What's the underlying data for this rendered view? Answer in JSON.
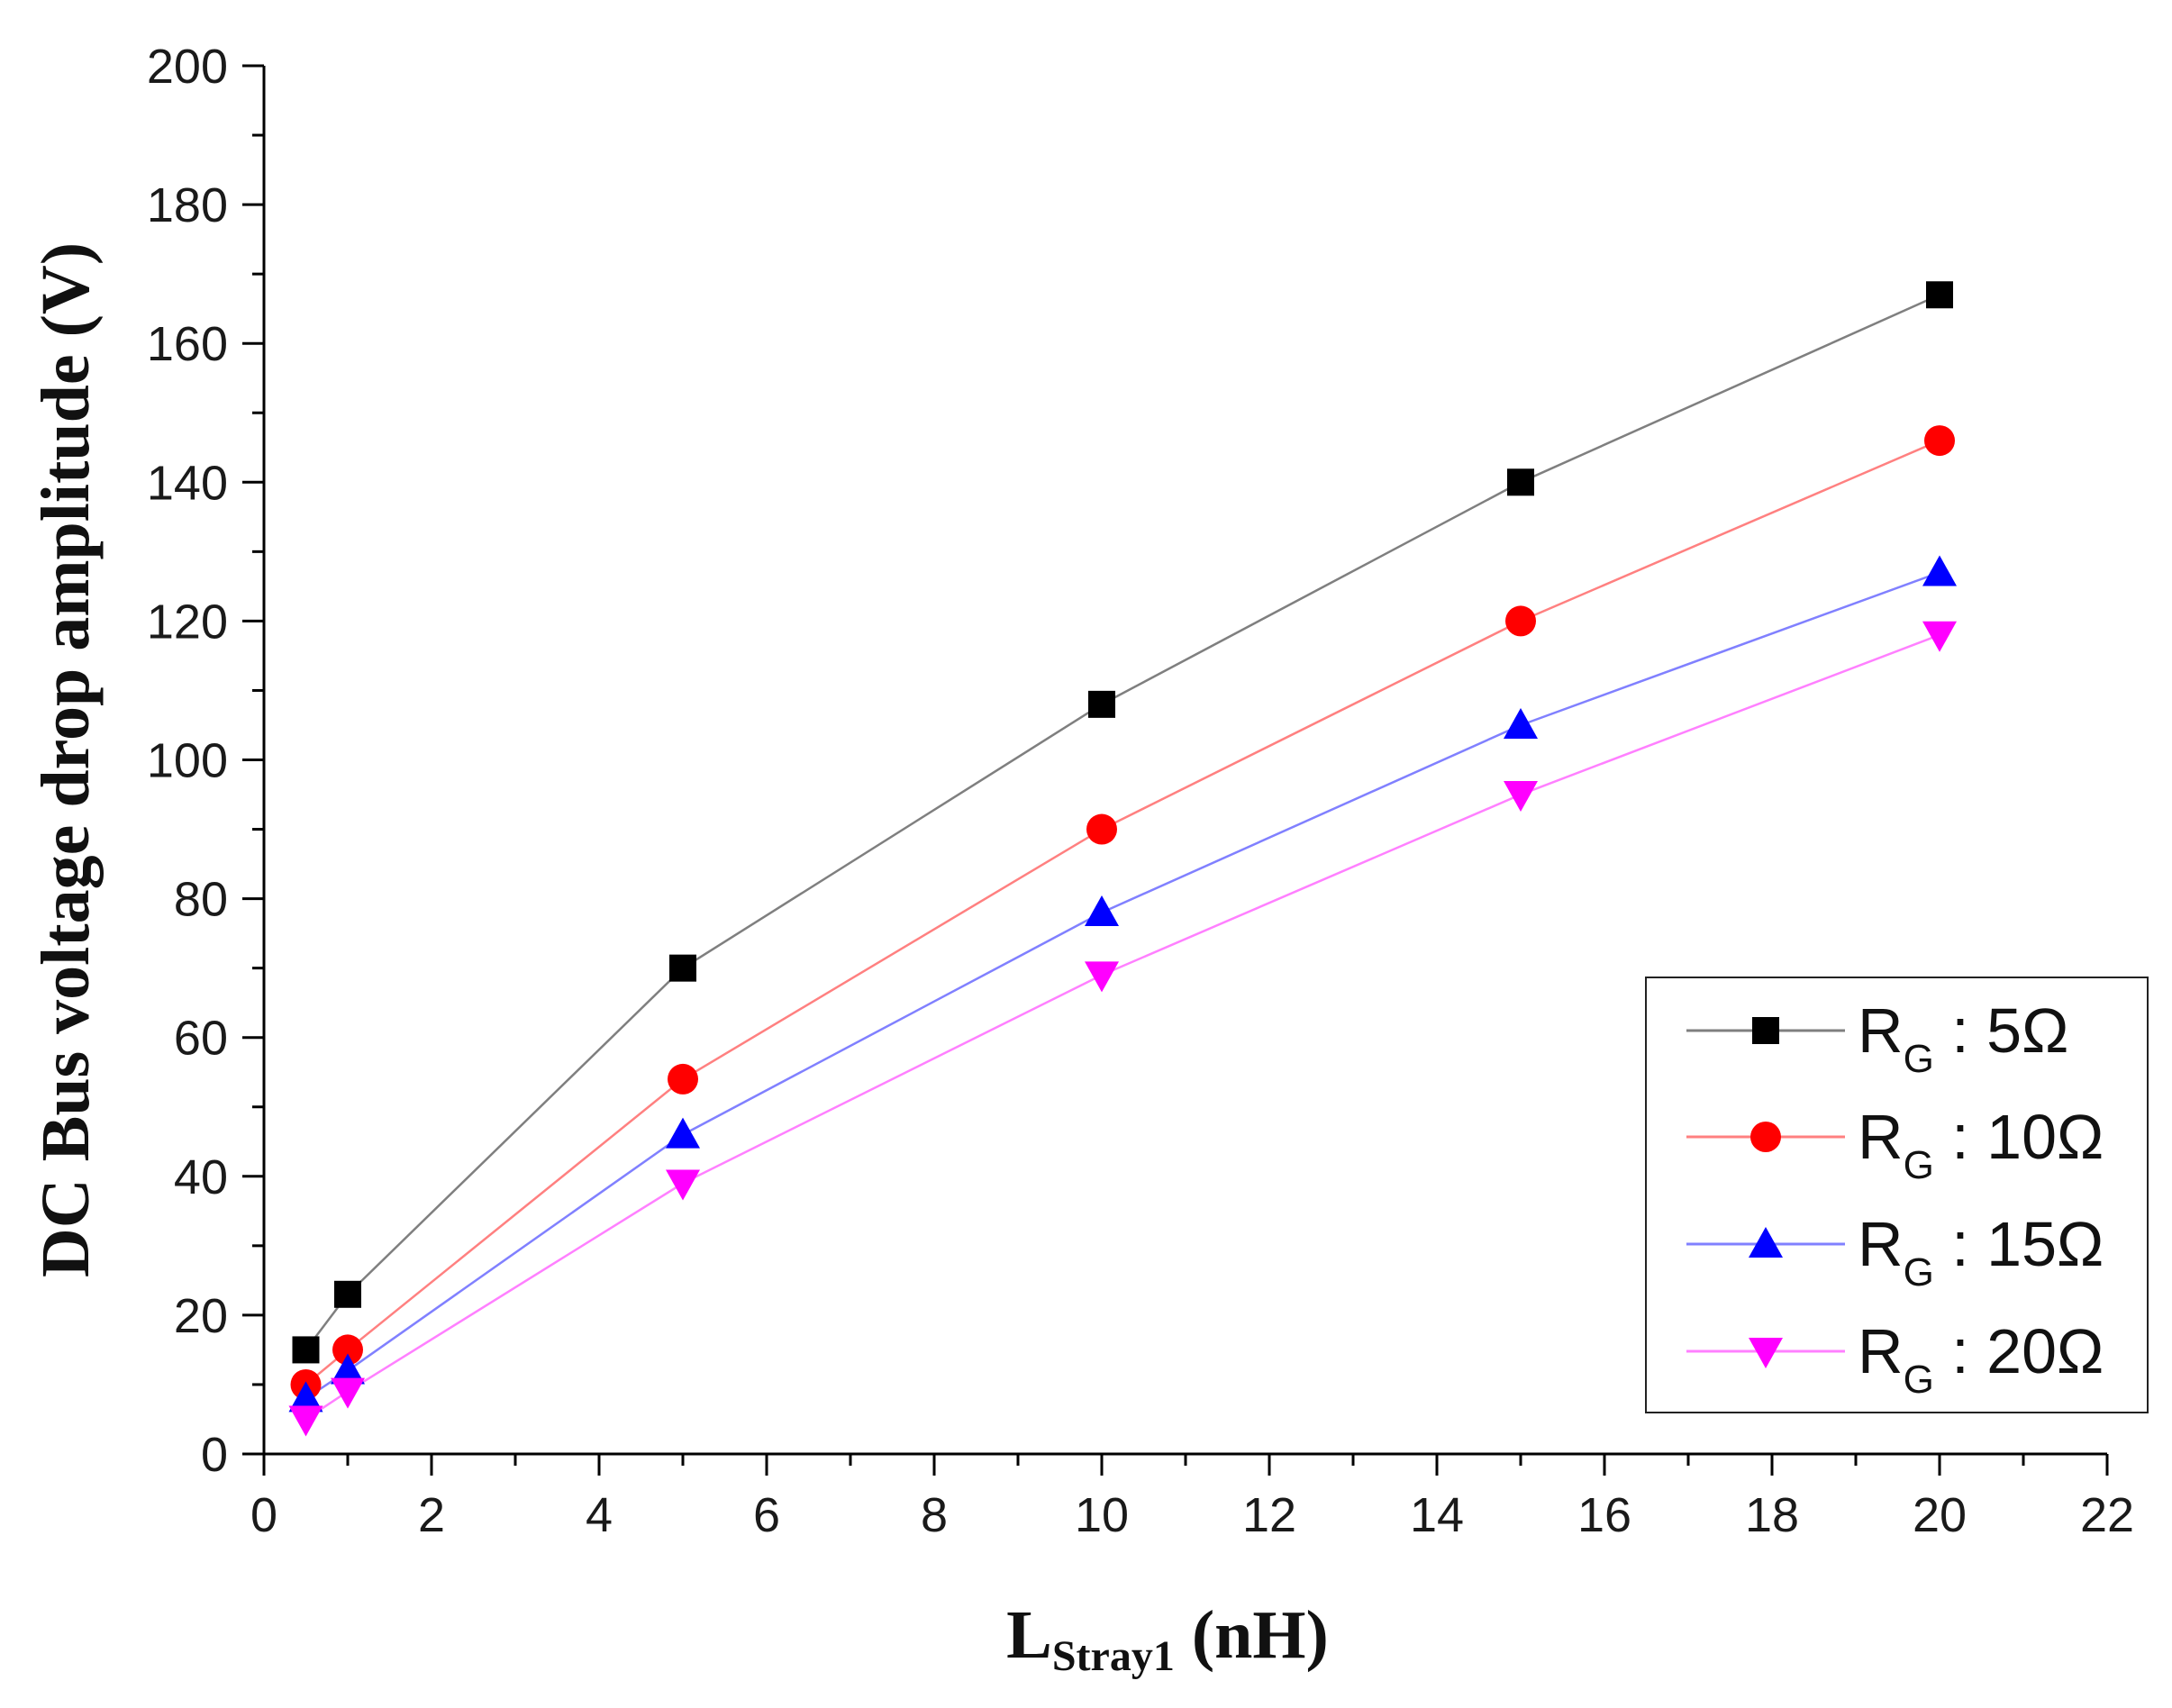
{
  "chart_data": {
    "type": "line",
    "title": "",
    "xlabel": {
      "main": "L",
      "sub": "Stray1",
      "unit": " (nH)"
    },
    "ylabel": "DC Bus voltage drop amplitude (V)",
    "xlim": [
      0,
      22
    ],
    "ylim": [
      0,
      200
    ],
    "x_major_ticks": [
      0,
      2,
      4,
      6,
      8,
      10,
      12,
      14,
      16,
      18,
      20,
      22
    ],
    "y_major_ticks": [
      0,
      20,
      40,
      60,
      80,
      100,
      120,
      140,
      160,
      180,
      200
    ],
    "grid": false,
    "legend_position": "lower-right",
    "x": [
      0.5,
      1,
      5,
      10,
      15,
      20
    ],
    "series": [
      {
        "name": "R_G : 5Ω",
        "label_main": "R",
        "label_sub": "G",
        "label_rest": " : 5Ω",
        "marker": "square",
        "marker_color": "#000000",
        "line_color": "#7f7f7f",
        "values": [
          15,
          23,
          70,
          108,
          140,
          167
        ]
      },
      {
        "name": "R_G : 10Ω",
        "label_main": "R",
        "label_sub": "G",
        "label_rest": " : 10Ω",
        "marker": "circle",
        "marker_color": "#ff0000",
        "line_color": "#ff8080",
        "values": [
          10,
          15,
          54,
          90,
          120,
          146
        ]
      },
      {
        "name": "R_G : 15Ω",
        "label_main": "R",
        "label_sub": "G",
        "label_rest": " : 15Ω",
        "marker": "triangle-up",
        "marker_color": "#0000ff",
        "line_color": "#8080ff",
        "values": [
          8,
          12,
          46,
          78,
          105,
          127
        ]
      },
      {
        "name": "R_G : 20Ω",
        "label_main": "R",
        "label_sub": "G",
        "label_rest": " : 20Ω",
        "marker": "triangle-down",
        "marker_color": "#ff00ff",
        "line_color": "#ff80ff",
        "values": [
          5,
          9,
          39,
          69,
          95,
          118
        ]
      }
    ]
  }
}
